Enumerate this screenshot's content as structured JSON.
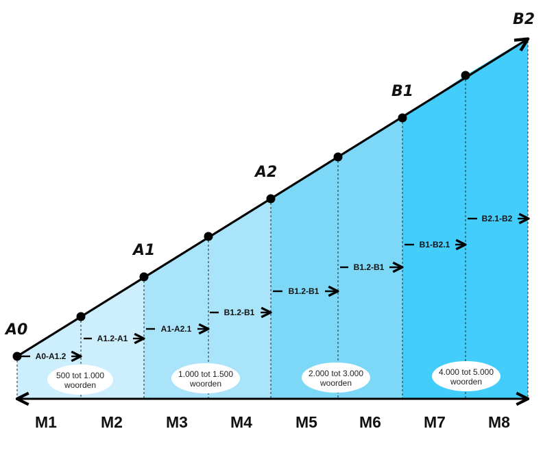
{
  "diagram": {
    "levels": [
      "A0",
      "A1",
      "A2",
      "B1",
      "B2"
    ],
    "steps": [
      "A0-A1.2",
      "A1.2-A1",
      "A1-A2.1",
      "B1.2-B1",
      "B1.2-B1",
      "B1.2-B1",
      "B1-B2.1",
      "B2.1-B2"
    ],
    "modules": [
      "M1",
      "M2",
      "M3",
      "M4",
      "M5",
      "M6",
      "M7",
      "M8"
    ],
    "vocabulary": [
      {
        "line1": "500 tot 1.000",
        "line2": "woorden"
      },
      {
        "line1": "1.000 tot 1.500",
        "line2": "woorden"
      },
      {
        "line1": "2.000 tot 3.000",
        "line2": "woorden"
      },
      {
        "line1": "4.000 tot 5.000",
        "line2": "woorden"
      }
    ],
    "colors": {
      "band_light": "#cdeefc",
      "band_mid": "#a9e4fb",
      "band_strong": "#7dd8f8",
      "band_deep": "#42cdfb",
      "line": "#000000"
    }
  }
}
